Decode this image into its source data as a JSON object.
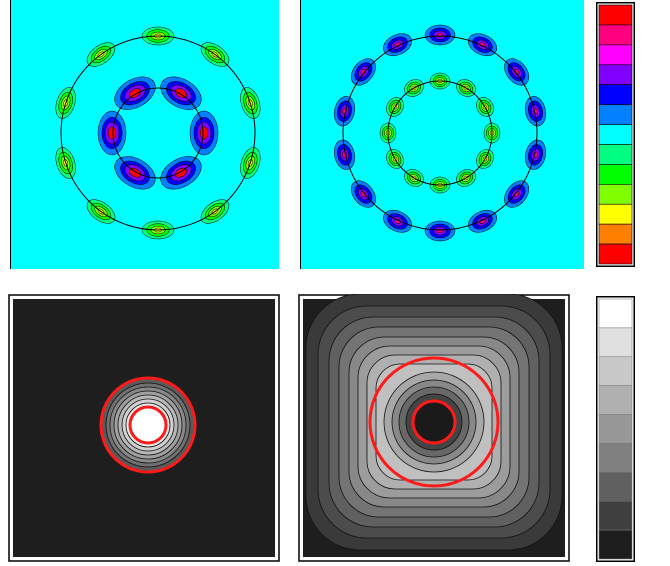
{
  "top_left_panel": {
    "rings": 2,
    "lobes_outer": 10,
    "lobes_inner": 6
  },
  "top_right_panel": {
    "rings": 2,
    "lobes_outer": 14,
    "lobes_inner": 12
  },
  "bottom_left_panel": {
    "red_contours": 2
  },
  "bottom_right_panel": {
    "red_contours": 2
  },
  "color_scale": {
    "colors": [
      "#ff0000",
      "#ff0080",
      "#ff00ff",
      "#8000ff",
      "#0000ff",
      "#0080ff",
      "#00ffff",
      "#00ff80",
      "#00ff00",
      "#80ff00",
      "#ffff00",
      "#ff8000",
      "#ff0000"
    ]
  },
  "gray_scale": {
    "colors": [
      "#ffffff",
      "#e0e0e0",
      "#c8c8c8",
      "#b0b0b0",
      "#989898",
      "#808080",
      "#606060",
      "#404040",
      "#1e1e1e"
    ]
  },
  "colors": {
    "background_cyan": "#00ffff",
    "contour_red": "#ff1a1a",
    "dark_field": "#1e1e1e"
  }
}
